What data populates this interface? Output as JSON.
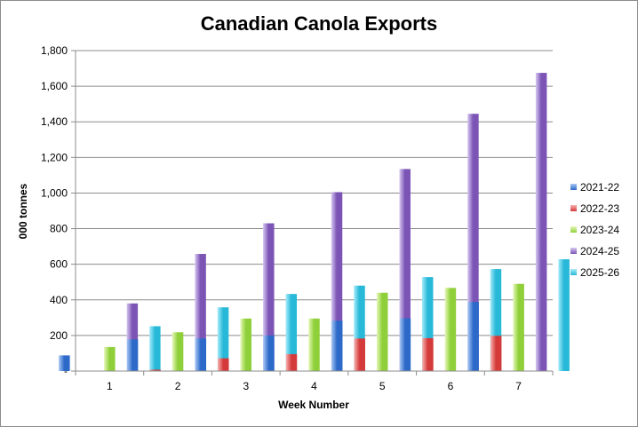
{
  "chart_data": {
    "type": "bar",
    "title": "Canadian Canola Exports",
    "xlabel": "Week Number",
    "ylabel": "000 tonnes",
    "categories": [
      "1",
      "2",
      "3",
      "4",
      "5",
      "6",
      "7"
    ],
    "ylim": [
      0,
      1800
    ],
    "yticks": [
      0,
      200,
      400,
      600,
      800,
      1000,
      1200,
      1400,
      1600,
      1800
    ],
    "ytick_labels": [
      "-",
      "200",
      "400",
      "600",
      "800",
      "1,000",
      "1,200",
      "1,400",
      "1,600",
      "1,800"
    ],
    "grid": true,
    "legend": "right",
    "series": [
      {
        "name": "2021-22",
        "values": [
          88,
          178,
          183,
          200,
          283,
          296,
          388
        ],
        "colors": [
          "#2d69c9",
          "#a9c9f5"
        ]
      },
      {
        "name": "2022-23",
        "values": [
          2,
          8,
          72,
          95,
          183,
          185,
          198
        ],
        "colors": [
          "#d43a3a",
          "#f7b3b0"
        ]
      },
      {
        "name": "2023-24",
        "values": [
          135,
          218,
          295,
          295,
          440,
          467,
          490
        ],
        "colors": [
          "#8fcf3a",
          "#e6f8b8"
        ]
      },
      {
        "name": "2024-25",
        "values": [
          380,
          658,
          830,
          1005,
          1135,
          1445,
          1675
        ],
        "colors": [
          "#7b54b5",
          "#d7c8f2"
        ]
      },
      {
        "name": "2025-26",
        "values": [
          252,
          358,
          433,
          480,
          528,
          573,
          628
        ],
        "colors": [
          "#28b8d8",
          "#a6ecfa"
        ]
      }
    ]
  }
}
